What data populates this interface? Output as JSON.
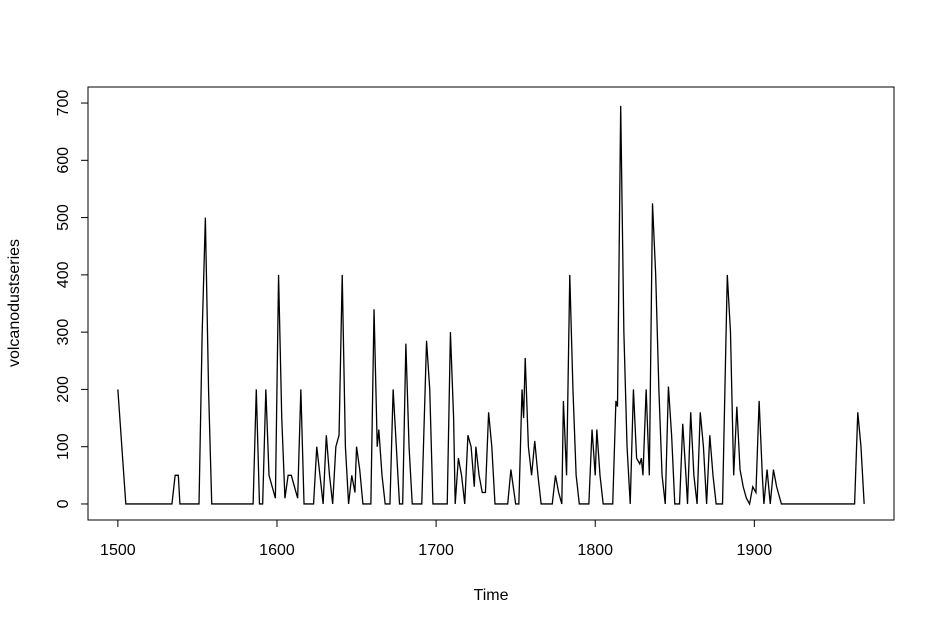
{
  "chart_data": {
    "type": "line",
    "xlabel": "Time",
    "ylabel": "volcanodustseries",
    "xlim": [
      1481.24,
      1987.76
    ],
    "ylim": [
      -28,
      728
    ],
    "xticks": [
      1500,
      1600,
      1700,
      1800,
      1900
    ],
    "yticks": [
      0,
      100,
      200,
      300,
      400,
      500,
      600,
      700
    ],
    "color": "#000000",
    "x": [
      1500,
      1505,
      1534,
      1536,
      1538,
      1539,
      1551,
      1553,
      1555,
      1557,
      1559,
      1585,
      1587,
      1589,
      1591,
      1593,
      1595,
      1597,
      1599,
      1601,
      1603,
      1605,
      1607,
      1609,
      1611,
      1613,
      1615,
      1617,
      1623,
      1625,
      1627,
      1629,
      1631,
      1633,
      1635,
      1637,
      1639,
      1641,
      1643,
      1645,
      1647,
      1649,
      1650,
      1652,
      1654,
      1659,
      1661,
      1663,
      1664,
      1666,
      1668,
      1671,
      1673,
      1675,
      1677,
      1679,
      1681,
      1683,
      1685,
      1691,
      1694,
      1696,
      1698,
      1707,
      1709,
      1711,
      1712,
      1714,
      1716,
      1718,
      1720,
      1722,
      1724,
      1725,
      1727,
      1729,
      1731,
      1733,
      1735,
      1737,
      1745,
      1747,
      1750,
      1752,
      1754,
      1755,
      1756,
      1758,
      1760,
      1762,
      1764,
      1766,
      1773,
      1775,
      1777,
      1779,
      1780,
      1782,
      1784,
      1786,
      1788,
      1790,
      1796,
      1798,
      1800,
      1801,
      1803,
      1805,
      1811,
      1813,
      1814,
      1816,
      1818,
      1820,
      1822,
      1824,
      1826,
      1828,
      1829,
      1830,
      1832,
      1834,
      1836,
      1838,
      1840,
      1842,
      1844,
      1846,
      1848,
      1850,
      1853,
      1855,
      1857,
      1858,
      1860,
      1862,
      1864,
      1866,
      1868,
      1870,
      1872,
      1874,
      1876,
      1880,
      1883,
      1885,
      1887,
      1889,
      1891,
      1893,
      1895,
      1897,
      1899,
      1901,
      1903,
      1905,
      1906,
      1908,
      1910,
      1912,
      1914,
      1917,
      1963,
      1965,
      1967,
      1969
    ],
    "values": [
      200,
      0,
      0,
      50,
      50,
      0,
      0,
      300,
      500,
      200,
      0,
      0,
      200,
      0,
      0,
      200,
      50,
      30,
      10,
      400,
      150,
      10,
      50,
      50,
      30,
      10,
      200,
      0,
      0,
      100,
      50,
      0,
      120,
      50,
      0,
      100,
      120,
      400,
      100,
      0,
      50,
      20,
      100,
      60,
      0,
      0,
      340,
      100,
      130,
      50,
      0,
      0,
      200,
      100,
      0,
      0,
      280,
      100,
      0,
      0,
      285,
      200,
      0,
      0,
      300,
      150,
      0,
      80,
      50,
      0,
      120,
      100,
      30,
      100,
      50,
      20,
      20,
      160,
      100,
      0,
      0,
      60,
      0,
      0,
      200,
      150,
      255,
      100,
      50,
      110,
      50,
      0,
      0,
      50,
      20,
      0,
      180,
      50,
      400,
      200,
      50,
      0,
      0,
      130,
      50,
      130,
      50,
      0,
      0,
      180,
      170,
      695,
      300,
      100,
      0,
      200,
      80,
      70,
      80,
      50,
      200,
      50,
      525,
      400,
      200,
      50,
      0,
      205,
      120,
      0,
      0,
      140,
      50,
      0,
      160,
      50,
      0,
      160,
      100,
      0,
      120,
      50,
      0,
      0,
      400,
      300,
      50,
      170,
      60,
      30,
      10,
      0,
      30,
      20,
      180,
      50,
      0,
      60,
      0,
      60,
      30,
      0,
      0,
      160,
      100,
      0
    ]
  }
}
